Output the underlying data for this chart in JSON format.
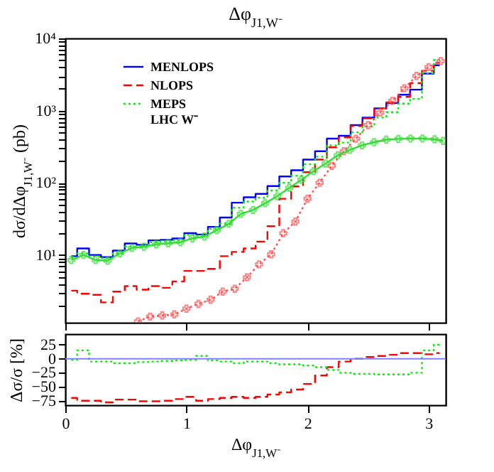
{
  "chart_data": [
    {
      "type": "step",
      "title": "Δφ$_{J1,W⁻}$",
      "ylabel": "dσ/dΔφ$_{J1,W⁻}$ (pb)",
      "xlim": [
        0,
        3.1416
      ],
      "xticks": [
        0,
        1,
        2,
        3
      ],
      "ylim": [
        1.15,
        10000
      ],
      "log": "y",
      "tick_labels": "y",
      "legend": "top left",
      "annotations": [
        "LHC W⁻"
      ],
      "yticks": [
        {
          "value": 2,
          "label": null
        },
        {
          "value": 3,
          "label": null
        },
        {
          "value": 4,
          "label": null
        },
        {
          "value": 5,
          "label": null
        },
        {
          "value": 6,
          "label": null
        },
        {
          "value": 7,
          "label": null
        },
        {
          "value": 8,
          "label": null
        },
        {
          "value": 9,
          "label": null
        },
        {
          "value": 10,
          "label": "10¹"
        },
        {
          "value": 20,
          "label": null
        },
        {
          "value": 30,
          "label": null
        },
        {
          "value": 40,
          "label": null
        },
        {
          "value": 50,
          "label": null
        },
        {
          "value": 60,
          "label": null
        },
        {
          "value": 70,
          "label": null
        },
        {
          "value": 80,
          "label": null
        },
        {
          "value": 90,
          "label": null
        },
        {
          "value": 100,
          "label": "10²"
        },
        {
          "value": 200,
          "label": null
        },
        {
          "value": 300,
          "label": null
        },
        {
          "value": 400,
          "label": null
        },
        {
          "value": 500,
          "label": null
        },
        {
          "value": 600,
          "label": null
        },
        {
          "value": 700,
          "label": null
        },
        {
          "value": 800,
          "label": null
        },
        {
          "value": 900,
          "label": null
        },
        {
          "value": 1000,
          "label": "10³"
        },
        {
          "value": 2000,
          "label": null
        },
        {
          "value": 3000,
          "label": null
        },
        {
          "value": 4000,
          "label": null
        },
        {
          "value": 5000,
          "label": null
        },
        {
          "value": 6000,
          "label": null
        },
        {
          "value": 7000,
          "label": null
        },
        {
          "value": 8000,
          "label": null
        },
        {
          "value": 9000,
          "label": null
        },
        {
          "value": 10000,
          "label": "10⁴"
        }
      ],
      "x": [
        0.049,
        0.147,
        0.245,
        0.344,
        0.442,
        0.54,
        0.638,
        0.736,
        0.835,
        0.933,
        1.031,
        1.129,
        1.227,
        1.325,
        1.424,
        1.522,
        1.62,
        1.718,
        1.816,
        1.914,
        2.013,
        2.111,
        2.209,
        2.307,
        2.405,
        2.503,
        2.601,
        2.7,
        2.798,
        2.896,
        2.994,
        3.092
      ],
      "series": [
        {
          "name": "MENLOPS",
          "color": "#0000ff",
          "line_style": "solid",
          "values": [
            9.6,
            12.3,
            10,
            9.3,
            11.5,
            14.4,
            13.8,
            15.9,
            16.2,
            16.9,
            20,
            19.2,
            24.5,
            33,
            53,
            63,
            70,
            90,
            122,
            149,
            209,
            273,
            408,
            447,
            629,
            798,
            1070,
            1270,
            1660,
            1950,
            3250,
            4250
          ]
        },
        {
          "name": "NLOPS",
          "color": "#ff0000",
          "line_style": "dashed",
          "values": [
            3.2,
            2.9,
            2.8,
            2.2,
            3.1,
            3.7,
            3.3,
            3.7,
            3.5,
            4.3,
            6,
            6,
            6.4,
            9.6,
            11,
            12.3,
            15.3,
            25,
            60,
            89,
            140,
            209,
            310,
            425,
            610,
            780,
            1070,
            1300,
            1550,
            2400,
            3550,
            4600
          ]
        },
        {
          "name": "MEPS",
          "color": "#00ee00",
          "line_style": "dotted",
          "values": [
            9,
            10.5,
            9.5,
            9,
            10.5,
            13,
            13,
            15,
            15.5,
            16,
            19,
            18.5,
            23,
            27,
            45,
            55,
            62,
            78,
            100,
            125,
            180,
            230,
            330,
            360,
            500,
            600,
            800,
            950,
            1250,
            1450,
            3300,
            5000
          ]
        },
        {
          "type": "line",
          "color": "#ff5050",
          "line_style": "dotted",
          "marker": "cross",
          "x": [
            0.6,
            0.7,
            0.8,
            0.9,
            1.0,
            1.1,
            1.2,
            1.3,
            1.4,
            1.5,
            1.6,
            1.7,
            1.8,
            1.9,
            2.0,
            2.1,
            2.2,
            2.3,
            2.4,
            2.5,
            2.6,
            2.7,
            2.8,
            2.9,
            3.0,
            3.1
          ],
          "values": [
            1.2,
            1.4,
            1.45,
            1.5,
            1.8,
            2.1,
            2.4,
            3.1,
            3.4,
            4.9,
            7.4,
            10.2,
            20,
            29,
            60,
            100,
            171,
            273,
            408,
            629,
            940,
            1360,
            2040,
            3020,
            4000,
            4850
          ]
        },
        {
          "type": "line",
          "color": "#33dd33",
          "line_style": "solid",
          "marker": "cross",
          "x": [
            0.05,
            0.15,
            0.25,
            0.35,
            0.45,
            0.55,
            0.65,
            0.75,
            0.85,
            0.95,
            1.05,
            1.15,
            1.25,
            1.35,
            1.45,
            1.55,
            1.65,
            1.75,
            1.85,
            1.95,
            2.05,
            2.15,
            2.25,
            2.35,
            2.45,
            2.55,
            2.65,
            2.75,
            2.85,
            2.95,
            3.05,
            3.12
          ],
          "values": [
            8.5,
            10,
            8.5,
            8.3,
            10.5,
            12.5,
            13,
            14,
            14.5,
            15,
            17,
            18,
            22,
            27,
            37,
            42,
            52,
            65,
            85,
            110,
            145,
            185,
            240,
            285,
            330,
            365,
            395,
            405,
            410,
            410,
            400,
            380
          ]
        }
      ]
    },
    {
      "type": "step",
      "xlabel": "Δφ$_{J1,W⁻}$",
      "ylabel": "Δσ/σ [%]",
      "xlim": [
        0,
        3.1416
      ],
      "xticks": [
        0,
        1,
        2,
        3
      ],
      "ylim": [
        -83,
        44
      ],
      "yticks": [
        25,
        0,
        -25,
        -50,
        -75
      ],
      "ref_lines": [
        {
          "axis": "y",
          "value": 0,
          "color": "#8080ff"
        }
      ],
      "x": [
        0.049,
        0.147,
        0.245,
        0.344,
        0.442,
        0.54,
        0.638,
        0.736,
        0.835,
        0.933,
        1.031,
        1.129,
        1.227,
        1.325,
        1.424,
        1.522,
        1.62,
        1.718,
        1.816,
        1.914,
        2.013,
        2.111,
        2.209,
        2.307,
        2.405,
        2.503,
        2.601,
        2.7,
        2.798,
        2.896,
        2.994,
        3.092
      ],
      "series": [
        {
          "color": "#ff0000",
          "line_style": "dashed",
          "values": [
            -70,
            -75,
            -75,
            -78,
            -73,
            -73,
            -76,
            -76,
            -75,
            -72,
            -68,
            -75,
            -72,
            -70,
            -68,
            -70,
            -68,
            -64,
            -60,
            -55,
            -45,
            -30,
            -15,
            -5,
            0,
            3,
            5,
            7,
            10,
            10,
            8,
            10
          ]
        },
        {
          "color": "#00ee00",
          "line_style": "dotted",
          "values": [
            -2,
            15,
            -5,
            -5,
            -8,
            -8,
            -6,
            -5,
            -4,
            -3,
            -2,
            5,
            -3,
            -5,
            -8,
            -5,
            -5,
            -8,
            -10,
            -10,
            -12,
            -15,
            -20,
            -25,
            -27,
            -27,
            -28,
            -28,
            -28,
            -25,
            15,
            25
          ]
        }
      ]
    }
  ]
}
